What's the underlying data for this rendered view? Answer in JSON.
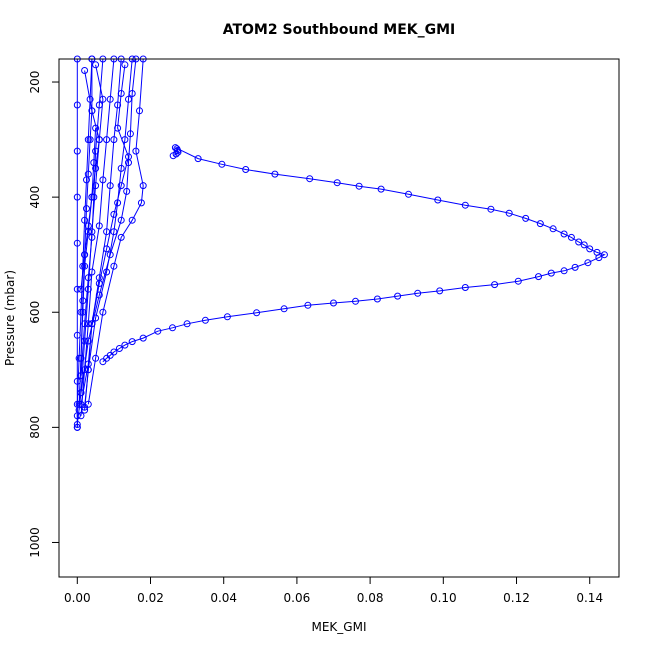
{
  "chart_data": {
    "type": "scatter",
    "title": "ATOM2 Southbound MEK_GMI",
    "xlabel": "MEK_GMI",
    "ylabel": "Pressure (mbar)",
    "xlim": [
      -0.005,
      0.148
    ],
    "ylim": [
      1060,
      160
    ],
    "y_reversed": true,
    "x_ticks": [
      0.0,
      0.02,
      0.04,
      0.06,
      0.08,
      0.1,
      0.12,
      0.14
    ],
    "x_tick_labels": [
      "0.00",
      "0.02",
      "0.04",
      "0.06",
      "0.08",
      "0.10",
      "0.12",
      "0.14"
    ],
    "y_ticks": [
      200,
      400,
      600,
      800,
      1000
    ],
    "y_tick_labels": [
      "200",
      "400",
      "600",
      "800",
      "1000"
    ],
    "grid": false,
    "legend": "none",
    "series_color": "#0000ff",
    "marker": "open-circle",
    "connected": true,
    "series": [
      {
        "points": [
          [
            0.0262,
            328
          ],
          [
            0.027,
            325
          ],
          [
            0.0275,
            322
          ],
          [
            0.0274,
            319
          ],
          [
            0.0272,
            316
          ],
          [
            0.0268,
            314
          ],
          [
            0.033,
            333
          ],
          [
            0.0395,
            343
          ],
          [
            0.046,
            352
          ],
          [
            0.054,
            360
          ],
          [
            0.0635,
            368
          ],
          [
            0.071,
            375
          ],
          [
            0.077,
            381
          ],
          [
            0.083,
            386
          ],
          [
            0.0905,
            395
          ],
          [
            0.0985,
            405
          ],
          [
            0.106,
            414
          ],
          [
            0.113,
            421
          ],
          [
            0.118,
            428
          ],
          [
            0.1225,
            437
          ],
          [
            0.1265,
            446
          ],
          [
            0.13,
            455
          ],
          [
            0.133,
            464
          ],
          [
            0.135,
            470
          ],
          [
            0.137,
            478
          ],
          [
            0.1385,
            483
          ],
          [
            0.14,
            490
          ],
          [
            0.142,
            496
          ],
          [
            0.144,
            500
          ],
          [
            0.1425,
            505
          ],
          [
            0.1395,
            514
          ],
          [
            0.136,
            522
          ],
          [
            0.133,
            528
          ],
          [
            0.1295,
            532
          ],
          [
            0.126,
            538
          ],
          [
            0.1205,
            546
          ],
          [
            0.114,
            552
          ],
          [
            0.106,
            557
          ],
          [
            0.099,
            563
          ],
          [
            0.093,
            567
          ],
          [
            0.0875,
            572
          ],
          [
            0.082,
            577
          ],
          [
            0.076,
            581
          ],
          [
            0.07,
            584
          ],
          [
            0.063,
            588
          ],
          [
            0.0565,
            594
          ],
          [
            0.049,
            601
          ],
          [
            0.041,
            608
          ],
          [
            0.035,
            614
          ],
          [
            0.03,
            620
          ],
          [
            0.026,
            627
          ],
          [
            0.022,
            633
          ],
          [
            0.018,
            645
          ],
          [
            0.015,
            651
          ],
          [
            0.013,
            657
          ],
          [
            0.0115,
            663
          ],
          [
            0.01,
            669
          ],
          [
            0.009,
            675
          ],
          [
            0.008,
            680
          ],
          [
            0.007,
            686
          ]
        ]
      },
      {
        "points": [
          [
            0.0,
            160
          ],
          [
            0.0,
            240
          ],
          [
            0.0,
            320
          ],
          [
            0.0,
            400
          ],
          [
            0.0,
            480
          ],
          [
            0.0,
            560
          ],
          [
            0.0,
            640
          ],
          [
            0.0,
            720
          ],
          [
            0.0,
            780
          ],
          [
            0.0,
            800
          ]
        ]
      },
      {
        "points": [
          [
            0.004,
            160
          ],
          [
            0.0035,
            230
          ],
          [
            0.003,
            300
          ],
          [
            0.0025,
            370
          ],
          [
            0.002,
            440
          ],
          [
            0.0015,
            520
          ],
          [
            0.001,
            600
          ],
          [
            0.0005,
            680
          ],
          [
            0.0,
            760
          ],
          [
            0.0,
            800
          ]
        ]
      },
      {
        "points": [
          [
            0.005,
            170
          ],
          [
            0.007,
            230
          ],
          [
            0.006,
            300
          ],
          [
            0.005,
            380
          ],
          [
            0.004,
            460
          ],
          [
            0.003,
            560
          ],
          [
            0.002,
            650
          ],
          [
            0.001,
            740
          ],
          [
            0.0,
            795
          ]
        ]
      },
      {
        "points": [
          [
            0.004,
            160
          ],
          [
            0.004,
            250
          ],
          [
            0.0035,
            300
          ],
          [
            0.003,
            360
          ],
          [
            0.0025,
            420
          ],
          [
            0.002,
            500
          ],
          [
            0.0015,
            580
          ],
          [
            0.001,
            680
          ],
          [
            0.0005,
            770
          ]
        ]
      },
      {
        "points": [
          [
            0.012,
            160
          ],
          [
            0.011,
            240
          ],
          [
            0.01,
            300
          ],
          [
            0.009,
            380
          ],
          [
            0.008,
            460
          ],
          [
            0.006,
            540
          ],
          [
            0.004,
            620
          ],
          [
            0.003,
            700
          ],
          [
            0.002,
            770
          ]
        ]
      },
      {
        "points": [
          [
            0.015,
            160
          ],
          [
            0.014,
            230
          ],
          [
            0.013,
            300
          ],
          [
            0.012,
            350
          ],
          [
            0.011,
            410
          ],
          [
            0.01,
            460
          ],
          [
            0.008,
            530
          ],
          [
            0.005,
            610
          ],
          [
            0.003,
            700
          ],
          [
            0.002,
            765
          ]
        ]
      },
      {
        "points": [
          [
            0.018,
            160
          ],
          [
            0.017,
            250
          ],
          [
            0.016,
            320
          ],
          [
            0.018,
            380
          ],
          [
            0.0175,
            410
          ],
          [
            0.015,
            440
          ],
          [
            0.012,
            470
          ],
          [
            0.01,
            520
          ],
          [
            0.007,
            600
          ],
          [
            0.005,
            680
          ],
          [
            0.003,
            760
          ]
        ]
      },
      {
        "points": [
          [
            0.01,
            160
          ],
          [
            0.009,
            230
          ],
          [
            0.008,
            300
          ],
          [
            0.007,
            370
          ],
          [
            0.006,
            450
          ],
          [
            0.004,
            530
          ],
          [
            0.003,
            620
          ],
          [
            0.002,
            700
          ],
          [
            0.001,
            780
          ]
        ]
      },
      {
        "points": [
          [
            0.002,
            180
          ],
          [
            0.004,
            250
          ],
          [
            0.006,
            300
          ],
          [
            0.005,
            350
          ],
          [
            0.004,
            400
          ],
          [
            0.003,
            460
          ],
          [
            0.002,
            520
          ],
          [
            0.0015,
            600
          ],
          [
            0.001,
            680
          ],
          [
            0.0005,
            760
          ]
        ]
      },
      {
        "points": [
          [
            0.013,
            170
          ],
          [
            0.012,
            220
          ],
          [
            0.011,
            280
          ],
          [
            0.014,
            330
          ],
          [
            0.012,
            380
          ],
          [
            0.01,
            430
          ],
          [
            0.008,
            490
          ],
          [
            0.006,
            550
          ],
          [
            0.004,
            620
          ],
          [
            0.003,
            690
          ],
          [
            0.001,
            760
          ]
        ]
      },
      {
        "points": [
          [
            0.007,
            160
          ],
          [
            0.006,
            240
          ],
          [
            0.005,
            320
          ],
          [
            0.0045,
            400
          ],
          [
            0.004,
            470
          ],
          [
            0.003,
            540
          ],
          [
            0.002,
            620
          ],
          [
            0.001,
            710
          ]
        ]
      },
      {
        "points": [
          [
            0.016,
            160
          ],
          [
            0.015,
            220
          ],
          [
            0.0145,
            290
          ],
          [
            0.014,
            340
          ],
          [
            0.0135,
            390
          ],
          [
            0.012,
            440
          ],
          [
            0.009,
            500
          ],
          [
            0.006,
            570
          ],
          [
            0.003,
            650
          ],
          [
            0.001,
            740
          ]
        ]
      },
      {
        "points": [
          [
            0.005,
            280
          ],
          [
            0.0045,
            340
          ],
          [
            0.004,
            400
          ],
          [
            0.003,
            450
          ],
          [
            0.002,
            500
          ],
          [
            0.001,
            560
          ]
        ]
      }
    ]
  }
}
